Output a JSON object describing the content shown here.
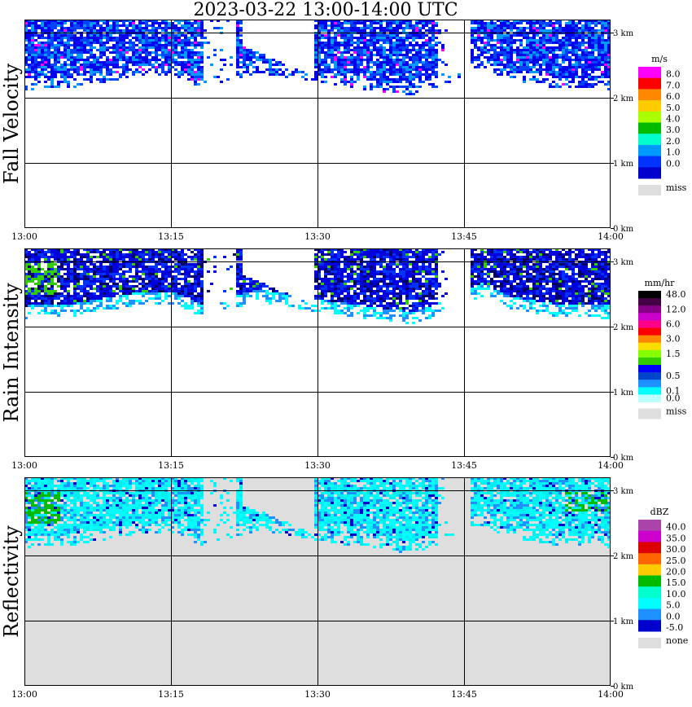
{
  "title": "2023-03-22  13:00-14:00 UTC",
  "colors": {
    "grid": "#000000",
    "missing_bg": "#dedede"
  },
  "chart_data": [
    {
      "type": "heatmap",
      "ylabel": "Fall Velocity",
      "x_ticks": [
        "13:00",
        "13:15",
        "13:30",
        "13:45",
        "14:00"
      ],
      "y_ticks": [
        "0 km",
        "1 km",
        "2 km",
        "3 km"
      ],
      "xlim": [
        "13:00",
        "14:00"
      ],
      "ylim_km": [
        0,
        3.2
      ],
      "background": "none",
      "legend": {
        "title": "m/s",
        "entries": [
          {
            "label": "8.0",
            "color": "#ff00ff"
          },
          {
            "label": "7.0",
            "color": "#ff0000"
          },
          {
            "label": "6.0",
            "color": "#ff8800"
          },
          {
            "label": "5.0",
            "color": "#ffcc00"
          },
          {
            "label": "4.0",
            "color": "#aaff00"
          },
          {
            "label": "3.0",
            "color": "#00bb00"
          },
          {
            "label": "2.0",
            "color": "#00ffcc"
          },
          {
            "label": "1.0",
            "color": "#0099ff"
          },
          {
            "label": "0.0",
            "color": "#0033ff"
          },
          {
            "label": "",
            "color": "#0000cc"
          }
        ],
        "missing_label": "miss"
      },
      "palette": [
        "#0000ee",
        "#0044ff",
        "#0099ff",
        "#1e90ff",
        "#ff00ff"
      ]
    },
    {
      "type": "heatmap",
      "ylabel": "Rain Intensity",
      "x_ticks": [
        "13:00",
        "13:15",
        "13:30",
        "13:45",
        "14:00"
      ],
      "y_ticks": [
        "0 km",
        "1 km",
        "2 km",
        "3 km"
      ],
      "xlim": [
        "13:00",
        "14:00"
      ],
      "ylim_km": [
        0,
        3.2
      ],
      "background": "none",
      "legend": {
        "title": "mm/hr",
        "entries": [
          {
            "label": "48.0",
            "color": "#000000"
          },
          {
            "label": "",
            "color": "#440044"
          },
          {
            "label": "12.0",
            "color": "#880088"
          },
          {
            "label": "",
            "color": "#cc00cc"
          },
          {
            "label": "6.0",
            "color": "#ff0088"
          },
          {
            "label": "",
            "color": "#ff0000"
          },
          {
            "label": "3.0",
            "color": "#ff8800"
          },
          {
            "label": "",
            "color": "#ffdd00"
          },
          {
            "label": "1.5",
            "color": "#88ff00"
          },
          {
            "label": "",
            "color": "#33cc00"
          },
          {
            "label": "",
            "color": "#0000ff"
          },
          {
            "label": "0.5",
            "color": "#0044cc"
          },
          {
            "label": "",
            "color": "#1e90ff"
          },
          {
            "label": "0.1",
            "color": "#00ffff"
          },
          {
            "label": "0.0",
            "color": "#bbffff"
          }
        ],
        "missing_label": "miss"
      },
      "palette": [
        "#0000dd",
        "#0033ff",
        "#00ffff",
        "#1e90ff",
        "#33cc00",
        "#000066"
      ]
    },
    {
      "type": "heatmap",
      "ylabel": "Reflectivity",
      "x_ticks": [
        "13:00",
        "13:15",
        "13:30",
        "13:45",
        "14:00"
      ],
      "y_ticks": [
        "0 km",
        "1 km",
        "2 km",
        "3 km"
      ],
      "xlim": [
        "13:00",
        "14:00"
      ],
      "ylim_km": [
        0,
        3.2
      ],
      "background": "#dedede",
      "legend": {
        "title": "dBZ",
        "entries": [
          {
            "label": "40.0",
            "color": "#aa44aa"
          },
          {
            "label": "35.0",
            "color": "#cc00cc"
          },
          {
            "label": "30.0",
            "color": "#dd0000"
          },
          {
            "label": "25.0",
            "color": "#ff6600"
          },
          {
            "label": "20.0",
            "color": "#ffcc00"
          },
          {
            "label": "15.0",
            "color": "#00bb00"
          },
          {
            "label": "10.0",
            "color": "#00ffcc"
          },
          {
            "label": "5.0",
            "color": "#00ffff"
          },
          {
            "label": "0.0",
            "color": "#1e90ff"
          },
          {
            "label": "-5.0",
            "color": "#0000cc"
          }
        ],
        "missing_label": "none"
      },
      "palette": [
        "#00ffff",
        "#00eeee",
        "#1e90ff",
        "#00bb00",
        "#0000cc"
      ]
    }
  ]
}
